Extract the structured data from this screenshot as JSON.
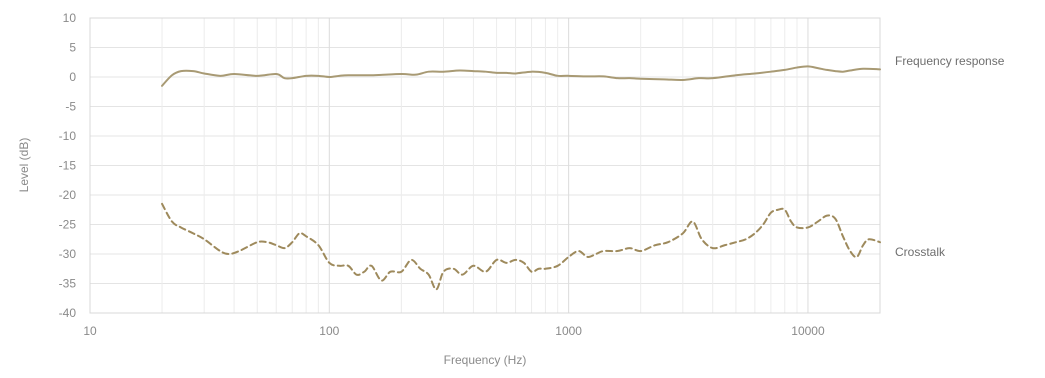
{
  "chart_data": {
    "type": "line",
    "title": "",
    "xlabel": "Frequency (Hz)",
    "ylabel": "Level (dB)",
    "xscale": "log",
    "xlim": [
      10,
      20000
    ],
    "ylim": [
      -40,
      10
    ],
    "xticks": [
      10,
      100,
      1000,
      10000
    ],
    "xtick_labels": [
      "10",
      "100",
      "1000",
      "10000"
    ],
    "yticks": [
      10,
      5,
      0,
      -5,
      -10,
      -15,
      -20,
      -25,
      -30,
      -35,
      -40
    ],
    "ytick_labels": [
      "10",
      "5",
      "0",
      "-5",
      "-10",
      "-15",
      "-20",
      "-25",
      "-30",
      "-35",
      "-40"
    ],
    "grid": true,
    "legend": "inline-right",
    "series": [
      {
        "name": "Frequency response",
        "style": "solid",
        "color": "#a89a74",
        "x": [
          20,
          22,
          24,
          27,
          30,
          35,
          40,
          50,
          60,
          65,
          70,
          80,
          90,
          100,
          110,
          120,
          150,
          200,
          230,
          260,
          300,
          350,
          400,
          450,
          500,
          550,
          600,
          700,
          800,
          900,
          1000,
          1200,
          1400,
          1600,
          1800,
          2000,
          2500,
          3000,
          3500,
          4000,
          5000,
          6000,
          7000,
          8000,
          9000,
          10000,
          11000,
          12000,
          13000,
          14000,
          15000,
          17000,
          20000
        ],
        "y": [
          -1.5,
          0.3,
          1.0,
          1.0,
          0.6,
          0.2,
          0.5,
          0.2,
          0.5,
          -0.2,
          -0.2,
          0.2,
          0.2,
          0.0,
          0.2,
          0.3,
          0.3,
          0.5,
          0.4,
          0.9,
          0.9,
          1.1,
          1.0,
          0.9,
          0.7,
          0.7,
          0.6,
          0.9,
          0.7,
          0.2,
          0.2,
          0.1,
          0.1,
          -0.2,
          -0.2,
          -0.3,
          -0.4,
          -0.5,
          -0.2,
          -0.2,
          0.3,
          0.6,
          0.9,
          1.2,
          1.6,
          1.8,
          1.5,
          1.2,
          1.0,
          0.9,
          1.1,
          1.4,
          1.3
        ]
      },
      {
        "name": "Crosstalk",
        "style": "dashed",
        "color": "#9e8a5c",
        "x": [
          20,
          22,
          24,
          27,
          30,
          35,
          38,
          42,
          50,
          55,
          60,
          65,
          70,
          75,
          80,
          90,
          100,
          110,
          120,
          130,
          140,
          150,
          165,
          180,
          200,
          220,
          240,
          260,
          280,
          300,
          330,
          360,
          400,
          450,
          500,
          550,
          600,
          650,
          700,
          750,
          800,
          900,
          1000,
          1100,
          1200,
          1300,
          1400,
          1600,
          1800,
          2000,
          2300,
          2600,
          3000,
          3300,
          3600,
          4000,
          4500,
          5000,
          5500,
          6000,
          6500,
          7000,
          7500,
          8000,
          8500,
          9000,
          10000,
          11000,
          12000,
          13000,
          14000,
          15000,
          16000,
          17000,
          18000,
          20000
        ],
        "y": [
          -21.5,
          -24.5,
          -25.5,
          -26.5,
          -27.5,
          -29.5,
          -30.0,
          -29.5,
          -28.0,
          -28.0,
          -28.5,
          -29.0,
          -28.0,
          -26.5,
          -27.0,
          -28.5,
          -31.5,
          -32.0,
          -32.0,
          -33.5,
          -33.0,
          -32.0,
          -34.5,
          -33.0,
          -33.0,
          -31.0,
          -32.5,
          -33.5,
          -36.0,
          -33.0,
          -32.5,
          -33.5,
          -32.0,
          -33.0,
          -31.0,
          -31.5,
          -31.0,
          -31.5,
          -33.0,
          -32.5,
          -32.5,
          -32.0,
          -30.5,
          -29.5,
          -30.5,
          -30.0,
          -29.5,
          -29.5,
          -29.0,
          -29.5,
          -28.5,
          -28.0,
          -26.5,
          -24.5,
          -27.5,
          -29.0,
          -28.5,
          -28.0,
          -27.5,
          -26.5,
          -25.0,
          -23.0,
          -22.5,
          -22.5,
          -24.5,
          -25.5,
          -25.5,
          -24.5,
          -23.5,
          -24.0,
          -27.0,
          -29.5,
          -30.5,
          -28.5,
          -27.5,
          -28.0
        ]
      }
    ]
  }
}
